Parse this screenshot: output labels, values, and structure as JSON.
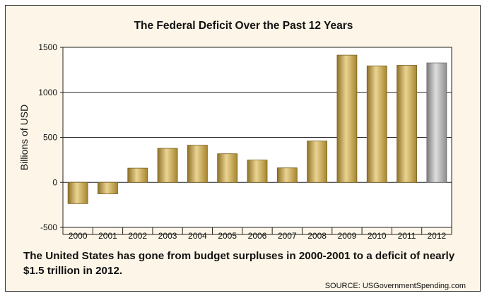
{
  "chart_data": {
    "type": "bar",
    "title": "The Federal Deficit Over the Past 12 Years",
    "ylabel": "Billions of USD",
    "xlabel": "",
    "categories": [
      "2000",
      "2001",
      "2002",
      "2003",
      "2004",
      "2005",
      "2006",
      "2007",
      "2008",
      "2009",
      "2010",
      "2011",
      "2012"
    ],
    "values": [
      -236,
      -128,
      158,
      378,
      413,
      318,
      248,
      161,
      459,
      1413,
      1294,
      1300,
      1327
    ],
    "highlight_index": 12,
    "ylim": [
      -500,
      1500
    ],
    "yticks": [
      -500,
      0,
      500,
      1000,
      1500
    ],
    "grid": true,
    "colors": {
      "bar": "#c8a84e",
      "bar_light": "#ebd493",
      "bar_dark": "#8f7226",
      "highlight": "#a8a8a8",
      "highlight_light": "#dedede",
      "highlight_dark": "#7c7c7c",
      "panel": "#fdf6e8"
    }
  },
  "caption": "The United States has gone from budget surpluses in 2000-2001 to a deficit of nearly $1.5 trillion in 2012.",
  "source": "SOURCE: USGovernmentSpending.com"
}
